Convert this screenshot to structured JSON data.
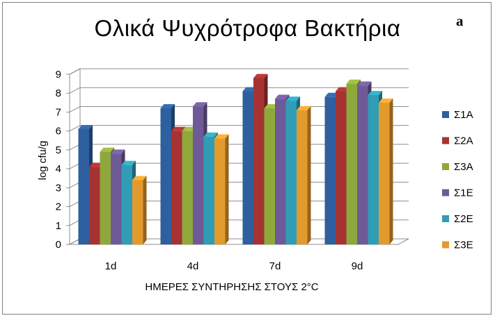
{
  "panel_label": "a",
  "chart_data": {
    "type": "bar",
    "title": "Ολικά Ψυχρότροφα Βακτήρια",
    "xlabel": "ΗΜΕΡΕΣ ΣΥΝΤΗΡΗΣΗΣ ΣΤΟΥΣ 2°C",
    "ylabel": "log cfu/g",
    "ylim": [
      0,
      9
    ],
    "yticks": [
      "0",
      "1",
      "2",
      "3",
      "4",
      "5",
      "6",
      "7",
      "8",
      "9"
    ],
    "categories": [
      "1d",
      "4d",
      "7d",
      "9d"
    ],
    "grid": true,
    "legend_position": "right",
    "series": [
      {
        "name": "Σ1Α",
        "color": "#2e5f9e",
        "values": [
          6.1,
          7.2,
          8.1,
          7.8
        ]
      },
      {
        "name": "Σ2Α",
        "color": "#a63232",
        "values": [
          4.1,
          6.0,
          8.8,
          8.1
        ]
      },
      {
        "name": "Σ3Α",
        "color": "#8fa83c",
        "values": [
          4.9,
          6.0,
          7.2,
          8.5
        ]
      },
      {
        "name": "Σ1Ε",
        "color": "#6e5a96",
        "values": [
          4.8,
          7.3,
          7.7,
          8.4
        ]
      },
      {
        "name": "Σ2Ε",
        "color": "#2f9db5",
        "values": [
          4.2,
          5.7,
          7.6,
          7.9
        ]
      },
      {
        "name": "Σ3Ε",
        "color": "#e39a2d",
        "values": [
          3.4,
          5.6,
          7.1,
          7.5
        ]
      }
    ]
  }
}
